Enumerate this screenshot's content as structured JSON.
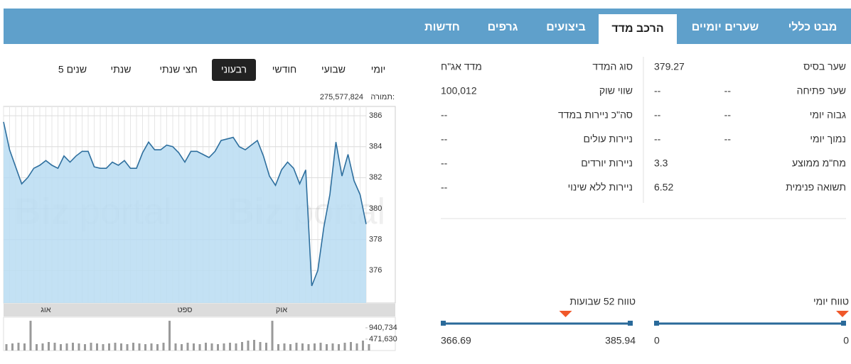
{
  "tabs": [
    "מבט כללי",
    "שערים יומיים",
    "הרכב מדד",
    "ביצועים",
    "גרפים",
    "חדשות"
  ],
  "periods": [
    "יומי",
    "שבועי",
    "חודשי",
    "רבעוני",
    "חצי שנתי",
    "שנתי",
    "5 שנים"
  ],
  "turnover": {
    "label": "תמורה:",
    "value": "275,577,824"
  },
  "watermark": [
    "Biz",
    "portal"
  ],
  "stats_right": [
    [
      "שער בסיס",
      379.27
    ],
    [
      "שער פתיחה",
      "--",
      "--"
    ],
    [
      "גבוה יומי",
      "--",
      "--"
    ],
    [
      "נמוך יומי",
      "--",
      "--"
    ],
    [
      "מח\"מ ממוצע",
      3.3
    ],
    [
      "תשואה פנימית",
      6.52
    ]
  ],
  "stats_left": [
    [
      "סוג המדד",
      "מדד אג\"ח"
    ],
    [
      "שווי שוק",
      "100,012"
    ],
    [
      "סה\"כ ניירות במדד",
      "--"
    ],
    [
      "ניירות עולים",
      "--"
    ],
    [
      "ניירות יורדים",
      "--"
    ],
    [
      "ניירות ללא שינוי",
      "--"
    ]
  ],
  "range_daily": {
    "label": "טווח יומי",
    "low": 0,
    "high": 0
  },
  "range_52w": {
    "label": "טווח 52 שבועות",
    "low": 366.69,
    "high": 385.94
  },
  "chart_data": [
    {
      "type": "area",
      "color": "#2e6f9e",
      "categories": [
        null,
        null,
        null,
        null,
        null,
        null,
        null,
        "אוג",
        null,
        null,
        null,
        null,
        null,
        null,
        null,
        null,
        null,
        null,
        null,
        null,
        null,
        null,
        null,
        null,
        null,
        null,
        null,
        null,
        null,
        null,
        "ספט",
        null,
        null,
        null,
        null,
        null,
        null,
        null,
        null,
        null,
        null,
        null,
        null,
        null,
        null,
        null,
        "אוק",
        null,
        null,
        null,
        null,
        null,
        null,
        null,
        null,
        null,
        null,
        null,
        null,
        null,
        null
      ],
      "values": [
        385.6,
        383.8,
        382.7,
        381.6,
        382.0,
        382.6,
        382.8,
        383.1,
        382.8,
        382.6,
        383.4,
        383.0,
        383.4,
        383.7,
        383.7,
        382.7,
        382.6,
        382.6,
        383.0,
        382.8,
        383.1,
        382.6,
        382.6,
        383.6,
        384.3,
        383.8,
        383.8,
        384.1,
        384.0,
        383.6,
        383.0,
        383.7,
        383.7,
        383.5,
        383.3,
        383.7,
        384.4,
        384.5,
        384.6,
        384.0,
        383.8,
        384.1,
        384.4,
        383.4,
        382.1,
        381.5,
        382.5,
        383.0,
        382.6,
        381.6,
        382.5,
        375.0,
        376.0,
        378.8,
        380.9,
        384.3,
        382.1,
        383.5,
        381.8,
        380.9,
        379.0
      ],
      "ylim": [
        373.9,
        386.6
      ],
      "yticks": [
        376,
        378,
        380,
        382,
        384,
        386
      ],
      "grid": true
    },
    {
      "type": "bar",
      "color": "#9a9a9a",
      "values": [
        264000,
        293000,
        322000,
        293000,
        1230000,
        264000,
        293000,
        352000,
        322000,
        264000,
        293000,
        322000,
        293000,
        264000,
        322000,
        293000,
        264000,
        293000,
        322000,
        293000,
        264000,
        322000,
        293000,
        264000,
        293000,
        264000,
        322000,
        1230000,
        293000,
        264000,
        322000,
        293000,
        264000,
        322000,
        293000,
        264000,
        293000,
        322000,
        293000,
        352000,
        410000,
        440000,
        352000,
        322000,
        1230000,
        264000,
        293000,
        264000,
        322000,
        293000,
        264000,
        293000,
        322000,
        264000,
        293000,
        264000,
        322000,
        352000,
        293000,
        410000,
        264000
      ],
      "ylim": [
        0,
        1350000
      ],
      "yticks": [
        {
          "value": 471630,
          "label": "471,630"
        },
        {
          "value": 940734,
          "label": "940,734"
        }
      ]
    }
  ]
}
